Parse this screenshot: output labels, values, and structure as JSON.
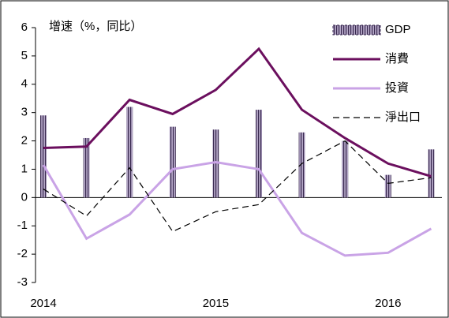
{
  "chart_data": {
    "type": "bar",
    "title": "增速（%，同比）",
    "categories": [
      "2014",
      null,
      null,
      null,
      "2015",
      null,
      null,
      null,
      "2016",
      null
    ],
    "series": [
      {
        "name": "GDP",
        "type": "bar",
        "color": "#b3a6c6",
        "values": [
          2.9,
          2.1,
          3.2,
          2.5,
          2.4,
          3.1,
          2.3,
          2.0,
          0.8,
          1.7
        ]
      },
      {
        "name": "消費",
        "type": "line",
        "color": "#6b0f5e",
        "linestyle": "solid",
        "values": [
          1.75,
          1.8,
          3.45,
          2.95,
          3.8,
          5.25,
          3.1,
          2.1,
          1.2,
          0.75
        ]
      },
      {
        "name": "投資",
        "type": "line",
        "color": "#c9a3e6",
        "linestyle": "solid",
        "values": [
          1.15,
          -1.45,
          -0.6,
          1.0,
          1.25,
          1.0,
          -1.25,
          -2.05,
          -1.95,
          -1.1
        ]
      },
      {
        "name": "淨出口",
        "type": "line",
        "color": "#000000",
        "linestyle": "dashed",
        "values": [
          0.3,
          -0.65,
          1.05,
          -1.2,
          -0.5,
          -0.25,
          1.2,
          2.0,
          0.5,
          0.7
        ]
      }
    ],
    "ylim": [
      -3,
      6
    ],
    "yticks": [
      -3,
      -2,
      -1,
      0,
      1,
      2,
      3,
      4,
      5,
      6
    ],
    "grid": false,
    "legend": "upper right"
  }
}
